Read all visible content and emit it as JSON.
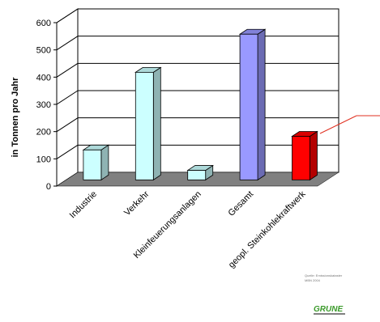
{
  "chart_data": {
    "type": "bar",
    "ylabel": "in Tonnen pro Jahr",
    "ylim": [
      0,
      600
    ],
    "yticks": [
      0,
      100,
      200,
      300,
      400,
      500,
      600
    ],
    "grid": true,
    "style": "3d-column",
    "categories": [
      "Industrie",
      "Verkehr",
      "Kleinfeuerungsanlagen",
      "Gesamt",
      "geopl. Steinkohlekraftwerk"
    ],
    "values": [
      110,
      395,
      35,
      535,
      160
    ],
    "bar_colors": [
      "#ccffff",
      "#ccffff",
      "#ccffff",
      "#9999ff",
      "#ff0000"
    ],
    "floor_color": "#808080"
  },
  "source_note": [
    "Quelle: Emissionskataster",
    "MBN 2004"
  ],
  "logo": {
    "text": "GRUNE",
    "color": "#3a9a2a"
  },
  "colors": {
    "grid": "#000000",
    "annotation_line": "#e03020"
  }
}
